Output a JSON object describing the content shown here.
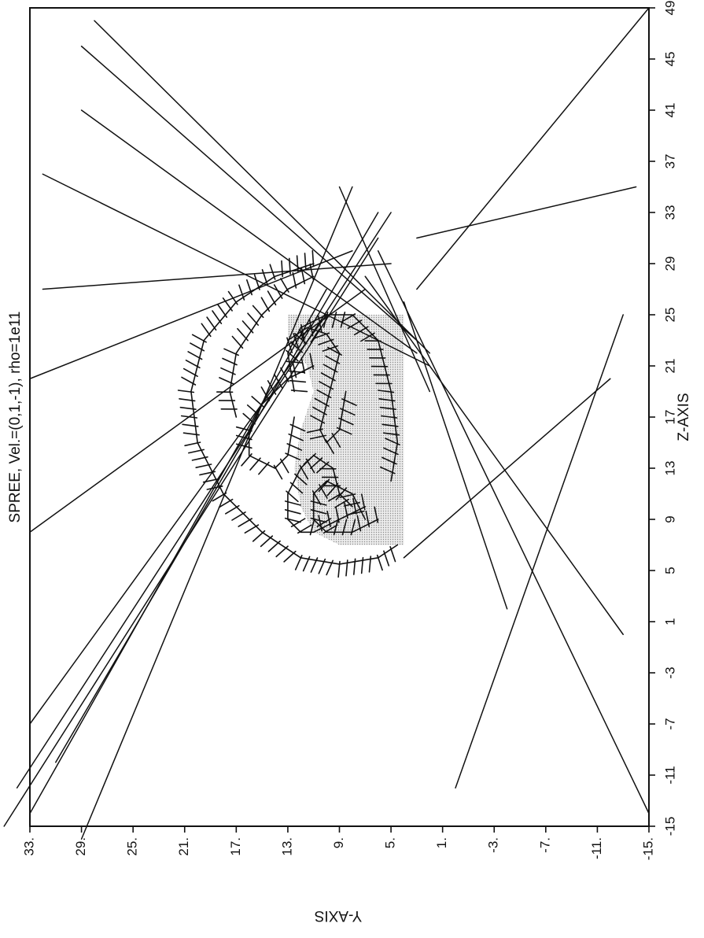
{
  "chart_data": {
    "type": "line",
    "title": "SPREE, Vel.=(0,1,-1), rho=1e11",
    "xlabel": "Z-AXIS",
    "ylabel": "Y-AXIS",
    "xlim": [
      -15,
      49
    ],
    "ylim": [
      -15,
      33
    ],
    "x_ticks": [
      -15,
      -11,
      -7,
      -3,
      1,
      5,
      9,
      13,
      17,
      21,
      25,
      29,
      33,
      37,
      41,
      45,
      49
    ],
    "x_tick_labels": [
      "-15",
      "-11",
      "-7",
      "-3",
      "1",
      "5",
      "9",
      "13",
      "17",
      "21",
      "25",
      "29",
      "33",
      "37",
      "41",
      "45",
      "49"
    ],
    "y_ticks": [
      33,
      29,
      25,
      21,
      17,
      13,
      9,
      5,
      1,
      -3,
      -7,
      -11,
      -15
    ],
    "y_tick_labels": [
      "33.",
      "29.",
      "25.",
      "21.",
      "17.",
      "13.",
      "9.",
      "5.",
      "1.",
      "-3.",
      "-7.",
      "-11.",
      "-15."
    ],
    "grid": false,
    "shaded_region": [
      [
        7,
        4
      ],
      [
        7,
        9
      ],
      [
        8,
        11
      ],
      [
        10,
        12
      ],
      [
        13,
        12.5
      ],
      [
        16,
        12
      ],
      [
        19,
        11
      ],
      [
        21,
        11.5
      ],
      [
        23,
        13
      ],
      [
        25,
        13
      ],
      [
        25,
        4
      ]
    ],
    "rays": [
      [
        [
          -14,
          33
        ],
        [
          27,
          10
        ]
      ],
      [
        [
          -7,
          33
        ],
        [
          25,
          10
        ]
      ],
      [
        [
          -10,
          31
        ],
        [
          33,
          6
        ]
      ],
      [
        [
          -16,
          29
        ],
        [
          35,
          8
        ]
      ],
      [
        [
          27,
          32
        ],
        [
          29,
          5
        ]
      ],
      [
        [
          20,
          33
        ],
        [
          30,
          8
        ]
      ],
      [
        [
          8,
          33
        ],
        [
          27,
          7
        ]
      ],
      [
        [
          -15,
          35
        ],
        [
          31,
          6
        ]
      ],
      [
        [
          -12,
          34
        ],
        [
          33,
          5
        ]
      ],
      [
        [
          36,
          32
        ],
        [
          21,
          2
        ]
      ],
      [
        [
          41,
          29
        ],
        [
          22,
          3
        ]
      ],
      [
        [
          46,
          29
        ],
        [
          23,
          3
        ]
      ],
      [
        [
          48,
          28
        ],
        [
          22,
          2
        ]
      ],
      [
        [
          49,
          -15
        ],
        [
          27,
          3
        ]
      ],
      [
        [
          35,
          9
        ],
        [
          19,
          2
        ]
      ],
      [
        [
          35,
          -14
        ],
        [
          31,
          3
        ]
      ],
      [
        [
          0,
          -13
        ],
        [
          28,
          7
        ]
      ],
      [
        [
          -14,
          -15
        ],
        [
          30,
          6
        ]
      ],
      [
        [
          -12,
          0
        ],
        [
          25,
          -13
        ]
      ],
      [
        [
          2,
          -4
        ],
        [
          26,
          4
        ]
      ],
      [
        [
          6,
          4
        ],
        [
          20,
          -12
        ]
      ]
    ],
    "envelopes": [
      [
        [
          29,
          11
        ],
        [
          28,
          14
        ],
        [
          26,
          17
        ],
        [
          23,
          19.5
        ],
        [
          19,
          20.5
        ],
        [
          15,
          20
        ],
        [
          11,
          18
        ],
        [
          8,
          15
        ],
        [
          6,
          12
        ],
        [
          5.5,
          9
        ],
        [
          6,
          6
        ],
        [
          7,
          4.5
        ]
      ],
      [
        [
          28,
          11
        ],
        [
          27,
          13
        ],
        [
          25,
          15
        ],
        [
          22,
          17
        ],
        [
          19,
          17.5
        ],
        [
          17,
          17
        ]
      ],
      [
        [
          19,
          12.5
        ],
        [
          22,
          13
        ],
        [
          24,
          12
        ],
        [
          25,
          10
        ],
        [
          25,
          8
        ],
        [
          23,
          6
        ],
        [
          19,
          5
        ],
        [
          15,
          4.5
        ],
        [
          12,
          5
        ]
      ],
      [
        [
          23,
          13
        ],
        [
          24,
          11.5
        ],
        [
          23.5,
          10
        ],
        [
          22,
          9
        ],
        [
          20,
          9.5
        ],
        [
          18,
          10
        ],
        [
          16,
          10.5
        ],
        [
          15,
          10
        ],
        [
          16,
          9
        ],
        [
          19,
          8.5
        ]
      ],
      [
        [
          21,
          11
        ],
        [
          20,
          13
        ],
        [
          18,
          15
        ],
        [
          16,
          16
        ],
        [
          14,
          16
        ],
        [
          13,
          14
        ],
        [
          14,
          13
        ],
        [
          17,
          12.5
        ]
      ],
      [
        [
          10,
          7
        ],
        [
          9,
          9
        ],
        [
          8,
          11
        ],
        [
          8,
          12
        ],
        [
          9,
          13
        ],
        [
          11,
          13
        ],
        [
          13,
          12
        ],
        [
          14,
          11
        ],
        [
          13,
          9.5
        ],
        [
          11,
          9
        ],
        [
          10,
          8
        ]
      ],
      [
        [
          9,
          6
        ],
        [
          8,
          8
        ],
        [
          8,
          10
        ],
        [
          9,
          11
        ],
        [
          11,
          11
        ],
        [
          12,
          10
        ],
        [
          11,
          8
        ],
        [
          9,
          7
        ]
      ]
    ]
  }
}
